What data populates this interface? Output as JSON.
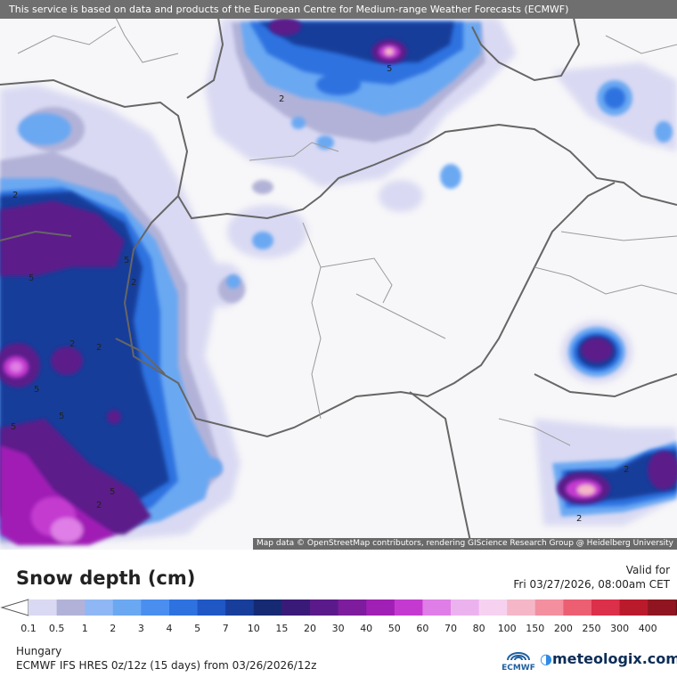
{
  "disclaimer": "This service is based on data and products of the European Centre for Medium-range Weather Forecasts (ECMWF)",
  "attribution": "Map data © OpenStreetMap contributors, rendering GIScience Research Group @ Heidelberg University",
  "legend": {
    "title": "Snow depth (cm)",
    "valid_label": "Valid for",
    "valid_time": "Fri 03/27/2026, 08:00am CET",
    "ticks": [
      "0.1",
      "0.5",
      "1",
      "2",
      "3",
      "4",
      "5",
      "7",
      "10",
      "15",
      "20",
      "30",
      "40",
      "50",
      "60",
      "70",
      "80",
      "100",
      "150",
      "200",
      "250",
      "300",
      "400"
    ],
    "colors": [
      "#d9d9f3",
      "#b2b2d8",
      "#8fb7f5",
      "#6aa8f2",
      "#4a8ef0",
      "#2e72e0",
      "#1f57c4",
      "#173e9a",
      "#162a73",
      "#3a1a78",
      "#5b1a8a",
      "#7d1c9d",
      "#a01fb5",
      "#c43ad0",
      "#df7ee6",
      "#ecb2ef",
      "#f6d2f0",
      "#f5b6c8",
      "#f38f9f",
      "#ec5f72",
      "#dc2f49",
      "#b91b2c",
      "#8f1620",
      "#6c0f16"
    ]
  },
  "map_labels": [
    "2",
    "2",
    "2",
    "5",
    "2",
    "2",
    "5",
    "5",
    "2",
    "5",
    "5",
    "2",
    "5",
    "2",
    "5"
  ],
  "footer": {
    "region": "Hungary",
    "model": "ECMWF IFS HRES 0z/12z (15 days) from 03/26/2026/12z",
    "ecmwf": "ECMWF",
    "brand": "meteologix.com"
  }
}
